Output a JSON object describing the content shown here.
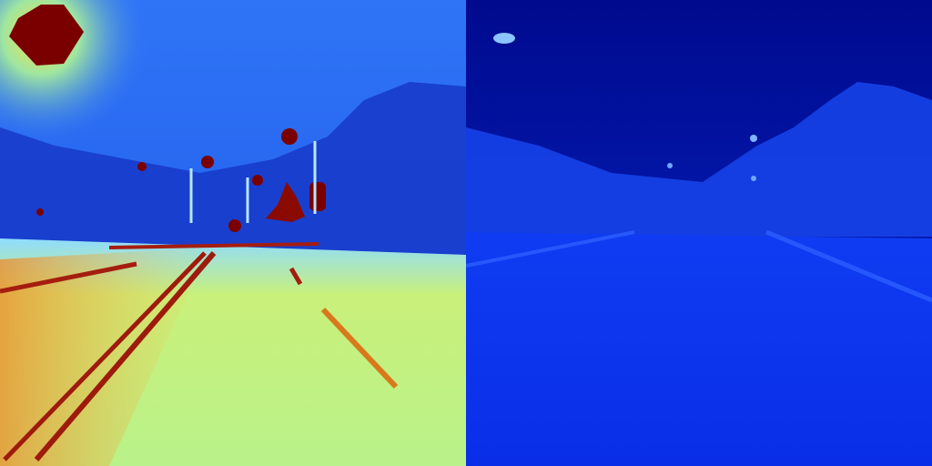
{
  "image": {
    "panels": [
      {
        "id": "left",
        "description_kind": "false-color jet-colormap road scene",
        "colormap": "jet",
        "colors": {
          "sky_top": "#2a6df5",
          "sky_bottom": "#1f57e8",
          "treeline": "#1636c4",
          "road_near": "#d8f26a",
          "road_far": "#8fe0ff",
          "road_left_hot": "#f2a13a",
          "hot_spot": "#7a0000",
          "lane_mark": "#a51d0f",
          "glow": "#ffd23a"
        }
      },
      {
        "id": "right",
        "description_kind": "thermal blue-tone road scene",
        "colormap": "blue",
        "colors": {
          "sky_top": "#000a8e",
          "sky_bottom": "#0a2fd8",
          "clouds": "#1a4bf0",
          "road": "#0b33f0",
          "lane_mark": "#2d60ff",
          "light": "#7fb6ff"
        }
      }
    ]
  }
}
